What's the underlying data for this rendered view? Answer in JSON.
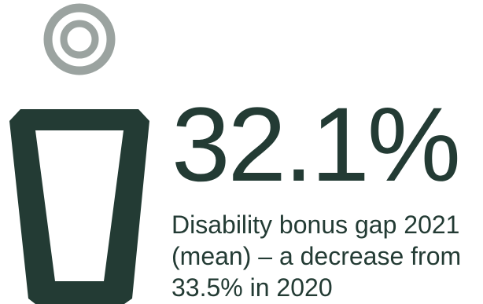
{
  "icon": {
    "name": "person-icon",
    "head_color": "#9ba3a0",
    "body_color": "#233b34"
  },
  "stat": {
    "value": "32.1%",
    "color": "#233b34"
  },
  "caption": {
    "lines": [
      "Disability bonus gap 2021",
      "(mean) – a decrease from",
      "33.5% in 2020"
    ]
  }
}
